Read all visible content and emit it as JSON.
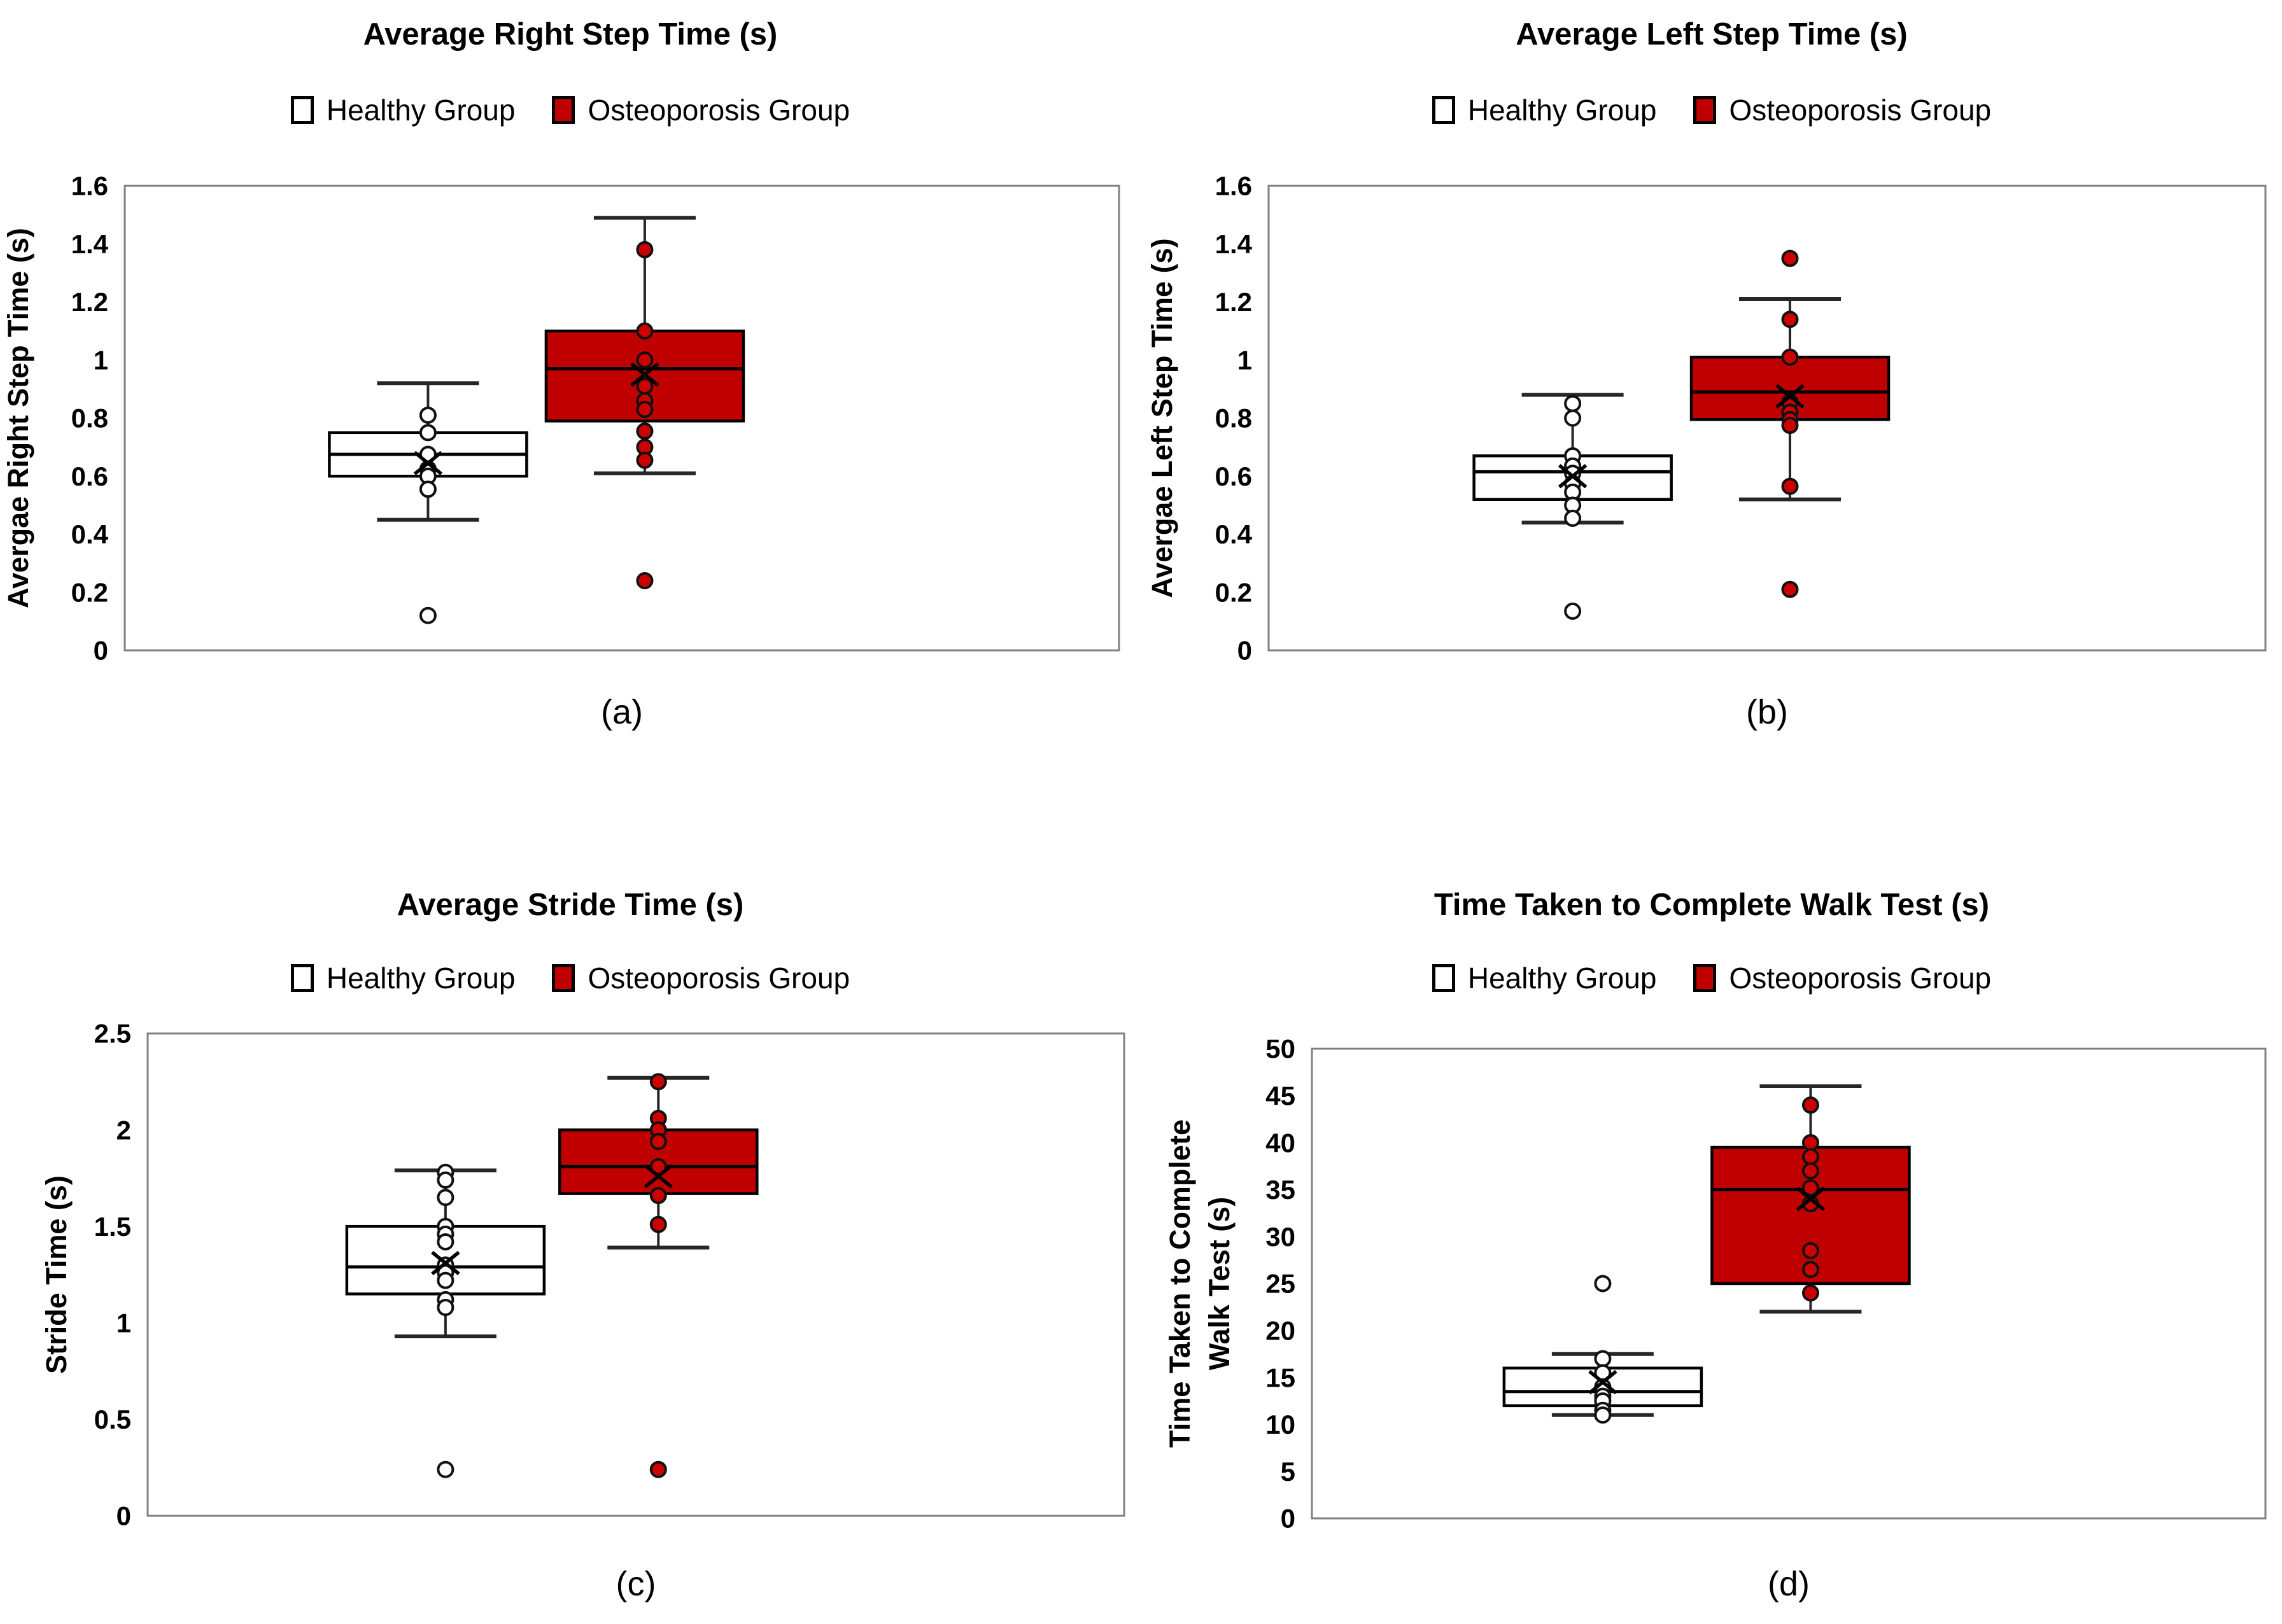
{
  "figure": {
    "colors": {
      "osteoporosis_red": "#c00000",
      "point_red": "#cc0000",
      "healthy_white": "#ffffff",
      "frame_gray": "#808080",
      "whisker_gray": "#262626",
      "box_stroke": "#000000"
    }
  },
  "chart_data": [
    {
      "type": "boxplot",
      "panel": "a",
      "title": "Average Right Step Time (s)",
      "caption": "(a)",
      "ylabel": "Avergae Right Step Time (s)",
      "ylabel_lines": [
        "Avergae Right Step Time (s)"
      ],
      "ylim": [
        0,
        1.6
      ],
      "ytick_values": [
        0,
        0.2,
        0.4,
        0.6,
        0.8,
        1,
        1.2,
        1.4,
        1.6
      ],
      "ytick_labels": [
        "0",
        "0.2",
        "0.4",
        "0.6",
        "0.8",
        "1",
        "1.2",
        "1.4",
        "1.6"
      ],
      "legend": [
        "Healthy Group",
        "Osteoporosis Group"
      ],
      "grid": false,
      "legend_position": "top",
      "series": [
        {
          "name": "Healthy Group",
          "box_fill": "#ffffff",
          "point_fill": "#ffffff",
          "whisker_low": 0.45,
          "q1": 0.6,
          "median": 0.675,
          "q3": 0.75,
          "whisker_high": 0.92,
          "mean": 0.645,
          "points": [
            0.81,
            0.75,
            0.675,
            0.625,
            0.6,
            0.555,
            0.12
          ]
        },
        {
          "name": "Osteoporosis Group",
          "box_fill": "#c00000",
          "point_fill": "#cc0000",
          "whisker_low": 0.61,
          "q1": 0.79,
          "median": 0.97,
          "q3": 1.1,
          "whisker_high": 1.49,
          "mean": 0.95,
          "points": [
            1.38,
            1.1,
            1.0,
            0.91,
            0.86,
            0.83,
            0.755,
            0.7,
            0.655,
            0.24
          ]
        }
      ]
    },
    {
      "type": "boxplot",
      "panel": "b",
      "title": "Average Left Step Time (s)",
      "caption": "(b)",
      "ylabel": "Avergae Left Step Time (s)",
      "ylabel_lines": [
        "Avergae Left Step Time (s)"
      ],
      "ylim": [
        0,
        1.6
      ],
      "ytick_values": [
        0,
        0.2,
        0.4,
        0.6,
        0.8,
        1,
        1.2,
        1.4,
        1.6
      ],
      "ytick_labels": [
        "0",
        "0.2",
        "0.4",
        "0.6",
        "0.8",
        "1",
        "1.2",
        "1.4",
        "1.6"
      ],
      "legend": [
        "Healthy Group",
        "Osteoporosis Group"
      ],
      "grid": false,
      "legend_position": "top",
      "series": [
        {
          "name": "Healthy Group",
          "box_fill": "#ffffff",
          "point_fill": "#ffffff",
          "whisker_low": 0.44,
          "q1": 0.52,
          "median": 0.615,
          "q3": 0.67,
          "whisker_high": 0.88,
          "mean": 0.6,
          "points": [
            0.85,
            0.8,
            0.67,
            0.635,
            0.61,
            0.575,
            0.545,
            0.5,
            0.455,
            0.135
          ]
        },
        {
          "name": "Osteoporosis Group",
          "box_fill": "#c00000",
          "point_fill": "#cc0000",
          "whisker_low": 0.52,
          "q1": 0.795,
          "median": 0.89,
          "q3": 1.01,
          "whisker_high": 1.21,
          "mean": 0.875,
          "points": [
            1.35,
            1.14,
            1.01,
            0.855,
            0.82,
            0.795,
            0.775,
            0.565,
            0.21
          ]
        }
      ]
    },
    {
      "type": "boxplot",
      "panel": "c",
      "title": "Average Stride Time (s)",
      "caption": "(c)",
      "ylabel": "Stride Time (s)",
      "ylabel_lines": [
        "Stride Time (s)"
      ],
      "ylim": [
        0,
        2.5
      ],
      "ytick_values": [
        0,
        0.5,
        1,
        1.5,
        2,
        2.5
      ],
      "ytick_labels": [
        "0",
        "0.5",
        "1",
        "1.5",
        "2",
        "2.5"
      ],
      "legend": [
        "Healthy Group",
        "Osteoporosis Group"
      ],
      "grid": false,
      "legend_position": "top",
      "series": [
        {
          "name": "Healthy Group",
          "box_fill": "#ffffff",
          "point_fill": "#ffffff",
          "whisker_low": 0.93,
          "q1": 1.15,
          "median": 1.29,
          "q3": 1.5,
          "whisker_high": 1.79,
          "mean": 1.31,
          "points": [
            1.78,
            1.74,
            1.65,
            1.5,
            1.46,
            1.42,
            1.3,
            1.26,
            1.22,
            1.12,
            1.08,
            0.24
          ]
        },
        {
          "name": "Osteoporosis Group",
          "box_fill": "#c00000",
          "point_fill": "#cc0000",
          "whisker_low": 1.39,
          "q1": 1.67,
          "median": 1.81,
          "q3": 2.0,
          "whisker_high": 2.27,
          "mean": 1.76,
          "points": [
            2.25,
            2.06,
            2.0,
            1.94,
            1.81,
            1.66,
            1.51,
            0.24
          ]
        }
      ]
    },
    {
      "type": "boxplot",
      "panel": "d",
      "title": "Time Taken to Complete Walk Test (s)",
      "caption": "(d)",
      "ylabel": "Time Taken to Complete Walk Test (s)",
      "ylabel_lines": [
        "Time Taken to Complete",
        "Walk Test (s)"
      ],
      "ylim": [
        0,
        50
      ],
      "ytick_values": [
        0,
        5,
        10,
        15,
        20,
        25,
        30,
        35,
        40,
        45,
        50
      ],
      "ytick_labels": [
        "0",
        "5",
        "10",
        "15",
        "20",
        "25",
        "30",
        "35",
        "40",
        "45",
        "50"
      ],
      "legend": [
        "Healthy Group",
        "Osteoporosis Group"
      ],
      "grid": false,
      "legend_position": "top",
      "series": [
        {
          "name": "Healthy Group",
          "box_fill": "#ffffff",
          "point_fill": "#ffffff",
          "whisker_low": 11,
          "q1": 12,
          "median": 13.5,
          "q3": 16,
          "whisker_high": 17.5,
          "mean": 14.5,
          "points": [
            25,
            17,
            15.5,
            14,
            13,
            12.5,
            11.5,
            11
          ]
        },
        {
          "name": "Osteoporosis Group",
          "box_fill": "#c00000",
          "point_fill": "#cc0000",
          "whisker_low": 22,
          "q1": 25,
          "median": 35,
          "q3": 39.5,
          "whisker_high": 46,
          "mean": 34,
          "points": [
            44,
            40,
            38.5,
            37,
            35.2,
            33.5,
            28.5,
            26.5,
            24
          ]
        }
      ]
    }
  ]
}
